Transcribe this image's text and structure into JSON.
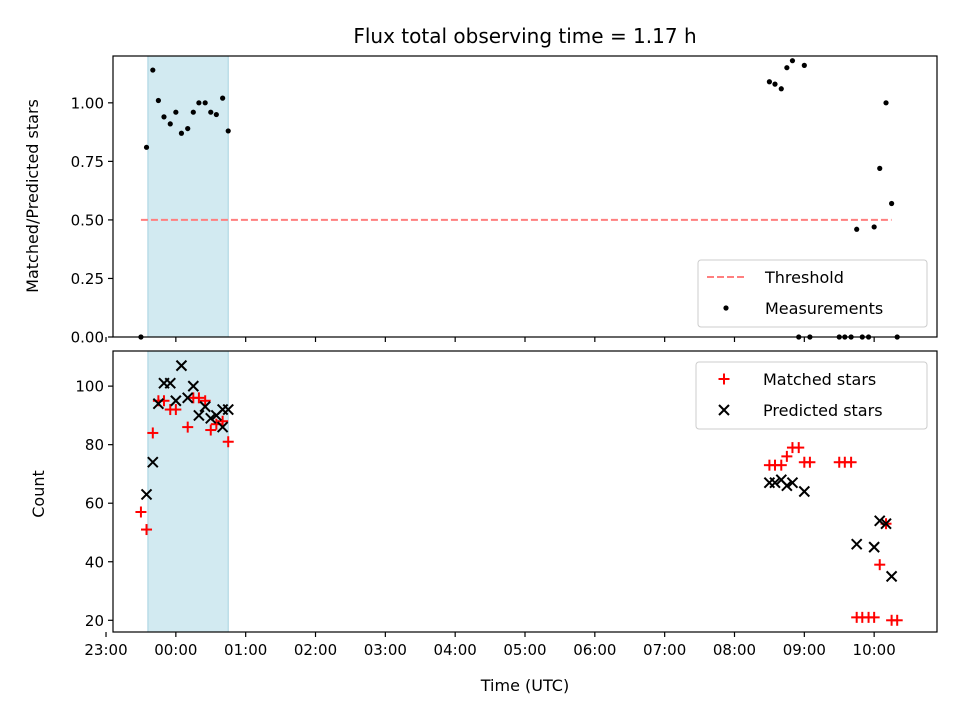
{
  "chart_data": [
    {
      "type": "scatter",
      "title": "Flux total observing time = 1.17 h",
      "ylabel": "Matched/Predicted stars",
      "xlabel": "",
      "xlim": [
        -0.9,
        10.9
      ],
      "ylim": [
        0,
        1.2
      ],
      "xticks": [
        {
          "value": -1,
          "label": ""
        },
        {
          "value": 0,
          "label": ""
        },
        {
          "value": 1,
          "label": ""
        },
        {
          "value": 2,
          "label": ""
        },
        {
          "value": 3,
          "label": ""
        },
        {
          "value": 4,
          "label": ""
        },
        {
          "value": 5,
          "label": ""
        },
        {
          "value": 6,
          "label": ""
        },
        {
          "value": 7,
          "label": ""
        },
        {
          "value": 8,
          "label": ""
        },
        {
          "value": 9,
          "label": ""
        },
        {
          "value": 10,
          "label": ""
        }
      ],
      "yticks": [
        {
          "value": 0,
          "label": "0.00"
        },
        {
          "value": 0.25,
          "label": "0.25"
        },
        {
          "value": 0.5,
          "label": "0.50"
        },
        {
          "value": 0.75,
          "label": "0.75"
        },
        {
          "value": 1.0,
          "label": "1.00"
        }
      ],
      "shaded_span": [
        -0.4,
        0.75
      ],
      "threshold": {
        "name": "Threshold",
        "value": 0.5,
        "x_range": [
          -0.5,
          10.25
        ],
        "color": "#ff7f7f"
      },
      "series": [
        {
          "name": "Measurements",
          "marker": "dot",
          "color": "#000000",
          "points": [
            [
              -0.5,
              0.0
            ],
            [
              -0.42,
              0.81
            ],
            [
              -0.33,
              1.14
            ],
            [
              -0.25,
              1.01
            ],
            [
              -0.17,
              0.94
            ],
            [
              -0.08,
              0.91
            ],
            [
              0.0,
              0.96
            ],
            [
              0.08,
              0.87
            ],
            [
              0.17,
              0.89
            ],
            [
              0.25,
              0.96
            ],
            [
              0.33,
              1.0
            ],
            [
              0.42,
              1.0
            ],
            [
              0.5,
              0.96
            ],
            [
              0.58,
              0.95
            ],
            [
              0.67,
              1.02
            ],
            [
              0.75,
              0.88
            ],
            [
              8.5,
              1.09
            ],
            [
              8.58,
              1.08
            ],
            [
              8.67,
              1.06
            ],
            [
              8.75,
              1.15
            ],
            [
              8.83,
              1.18
            ],
            [
              9.0,
              1.16
            ],
            [
              8.92,
              0.0
            ],
            [
              9.08,
              0.0
            ],
            [
              9.5,
              0.0
            ],
            [
              9.58,
              0.0
            ],
            [
              9.67,
              0.0
            ],
            [
              9.83,
              0.0
            ],
            [
              9.92,
              0.0
            ],
            [
              9.75,
              0.46
            ],
            [
              10.0,
              0.47
            ],
            [
              10.08,
              0.72
            ],
            [
              10.17,
              1.0
            ],
            [
              10.25,
              0.57
            ],
            [
              10.33,
              0.0
            ]
          ]
        }
      ],
      "legend": {
        "position": "bottom-right",
        "entries": [
          "Threshold",
          "Measurements"
        ]
      }
    },
    {
      "type": "scatter",
      "title": "",
      "xlabel": "Time (UTC)",
      "ylabel": "Count",
      "xlim": [
        -0.9,
        10.9
      ],
      "ylim": [
        16,
        112
      ],
      "xticks": [
        {
          "value": -1,
          "label": "23:00"
        },
        {
          "value": 0,
          "label": "00:00"
        },
        {
          "value": 1,
          "label": "01:00"
        },
        {
          "value": 2,
          "label": "02:00"
        },
        {
          "value": 3,
          "label": "03:00"
        },
        {
          "value": 4,
          "label": "04:00"
        },
        {
          "value": 5,
          "label": "05:00"
        },
        {
          "value": 6,
          "label": "06:00"
        },
        {
          "value": 7,
          "label": "07:00"
        },
        {
          "value": 8,
          "label": "08:00"
        },
        {
          "value": 9,
          "label": "09:00"
        },
        {
          "value": 10,
          "label": "10:00"
        }
      ],
      "yticks": [
        {
          "value": 20,
          "label": "20"
        },
        {
          "value": 40,
          "label": "40"
        },
        {
          "value": 60,
          "label": "60"
        },
        {
          "value": 80,
          "label": "80"
        },
        {
          "value": 100,
          "label": "100"
        }
      ],
      "shaded_span": [
        -0.4,
        0.75
      ],
      "series": [
        {
          "name": "Matched stars",
          "marker": "plus",
          "color": "#ff0000",
          "points": [
            [
              -0.5,
              57
            ],
            [
              -0.42,
              51
            ],
            [
              -0.33,
              84
            ],
            [
              -0.25,
              95
            ],
            [
              -0.17,
              95
            ],
            [
              -0.08,
              92
            ],
            [
              0.0,
              92
            ],
            [
              0.17,
              86
            ],
            [
              0.25,
              96
            ],
            [
              0.33,
              96
            ],
            [
              0.42,
              95
            ],
            [
              0.5,
              85
            ],
            [
              0.58,
              87
            ],
            [
              0.67,
              88
            ],
            [
              0.75,
              81
            ],
            [
              8.5,
              73
            ],
            [
              8.58,
              73
            ],
            [
              8.67,
              73
            ],
            [
              8.75,
              76
            ],
            [
              8.83,
              79
            ],
            [
              8.92,
              79
            ],
            [
              9.0,
              74
            ],
            [
              9.08,
              74
            ],
            [
              9.5,
              74
            ],
            [
              9.58,
              74
            ],
            [
              9.67,
              74
            ],
            [
              9.75,
              21
            ],
            [
              9.83,
              21
            ],
            [
              9.92,
              21
            ],
            [
              10.0,
              21
            ],
            [
              10.08,
              39
            ],
            [
              10.17,
              53
            ],
            [
              10.25,
              20
            ],
            [
              10.33,
              20
            ]
          ]
        },
        {
          "name": "Predicted stars",
          "marker": "x",
          "color": "#000000",
          "points": [
            [
              -0.42,
              63
            ],
            [
              -0.33,
              74
            ],
            [
              -0.25,
              94
            ],
            [
              -0.17,
              101
            ],
            [
              -0.08,
              101
            ],
            [
              0.0,
              95
            ],
            [
              0.08,
              107
            ],
            [
              0.17,
              96
            ],
            [
              0.25,
              100
            ],
            [
              0.33,
              90
            ],
            [
              0.42,
              93
            ],
            [
              0.5,
              89
            ],
            [
              0.58,
              90
            ],
            [
              0.67,
              92
            ],
            [
              0.67,
              86
            ],
            [
              0.75,
              92
            ],
            [
              8.5,
              67
            ],
            [
              8.58,
              67
            ],
            [
              8.67,
              68
            ],
            [
              8.75,
              66
            ],
            [
              8.83,
              67
            ],
            [
              9.0,
              64
            ],
            [
              9.75,
              46
            ],
            [
              10.0,
              45
            ],
            [
              10.08,
              54
            ],
            [
              10.17,
              53
            ],
            [
              10.25,
              35
            ]
          ]
        }
      ],
      "legend": {
        "position": "top-right",
        "entries": [
          "Matched stars",
          "Predicted stars"
        ]
      }
    }
  ]
}
